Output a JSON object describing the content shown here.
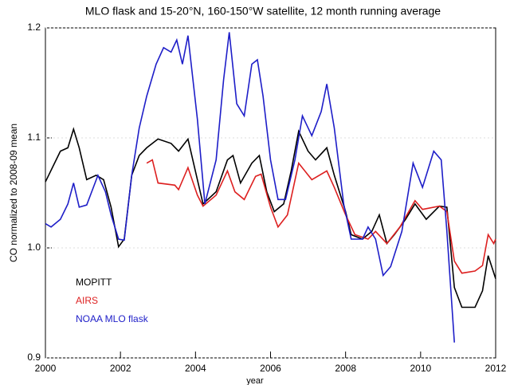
{
  "chart_data": {
    "type": "line",
    "title": "MLO flask and 15-20°N, 160-150°W satellite, 12 month running average",
    "x_label": "year",
    "y_label": "CO normalized to 2008-09 mean",
    "xlim": [
      2000,
      2012
    ],
    "xticks": [
      2000,
      2002,
      2004,
      2006,
      2008,
      2010,
      2012
    ],
    "ylim": [
      0.9,
      1.2
    ],
    "yticks": [
      0.9,
      {
        "value": 1,
        "label": "1.0"
      },
      1.1,
      1.2
    ],
    "grid": true,
    "legend": "lower left",
    "series": [
      {
        "name": "MOPITT",
        "color": "#000000",
        "x": [
          2000.0,
          2000.4,
          2000.6,
          2000.75,
          2000.9,
          2001.1,
          2001.35,
          2001.55,
          2001.75,
          2001.95,
          2002.1,
          2002.3,
          2002.5,
          2002.7,
          2003.0,
          2003.35,
          2003.55,
          2003.8,
          2004.05,
          2004.2,
          2004.55,
          2004.85,
          2005.0,
          2005.2,
          2005.5,
          2005.7,
          2005.9,
          2006.1,
          2006.35,
          2006.55,
          2006.75,
          2007.0,
          2007.2,
          2007.5,
          2007.7,
          2008.0,
          2008.15,
          2008.45,
          2008.7,
          2008.9,
          2009.1,
          2009.3,
          2009.6,
          2009.85,
          2010.15,
          2010.5,
          2010.7,
          2010.9,
          2011.1,
          2011.45,
          2011.65,
          2011.8,
          2012.0
        ],
        "values": [
          1.06,
          1.088,
          1.091,
          1.108,
          1.091,
          1.062,
          1.066,
          1.062,
          1.037,
          1.001,
          1.008,
          1.066,
          1.084,
          1.091,
          1.099,
          1.095,
          1.088,
          1.099,
          1.062,
          1.04,
          1.051,
          1.08,
          1.084,
          1.059,
          1.077,
          1.084,
          1.051,
          1.033,
          1.04,
          1.07,
          1.106,
          1.088,
          1.08,
          1.091,
          1.066,
          1.033,
          1.012,
          1.008,
          1.015,
          1.03,
          1.004,
          1.012,
          1.026,
          1.04,
          1.026,
          1.038,
          1.037,
          0.964,
          0.946,
          0.946,
          0.961,
          0.993,
          0.972
        ]
      },
      {
        "name": "AIRS",
        "color": "#dd2020",
        "x": [
          2002.7,
          2002.85,
          2003.0,
          2003.45,
          2003.55,
          2003.8,
          2004.05,
          2004.2,
          2004.55,
          2004.85,
          2005.05,
          2005.3,
          2005.6,
          2005.75,
          2006.0,
          2006.2,
          2006.45,
          2006.75,
          2007.1,
          2007.5,
          2007.7,
          2008.0,
          2008.25,
          2008.6,
          2008.8,
          2009.1,
          2009.45,
          2009.85,
          2010.05,
          2010.5,
          2010.7,
          2010.9,
          2011.1,
          2011.45,
          2011.65,
          2011.8,
          2011.95,
          2012.0
        ],
        "values": [
          1.077,
          1.08,
          1.059,
          1.057,
          1.053,
          1.073,
          1.048,
          1.038,
          1.048,
          1.07,
          1.051,
          1.044,
          1.065,
          1.067,
          1.037,
          1.019,
          1.03,
          1.077,
          1.062,
          1.07,
          1.055,
          1.03,
          1.012,
          1.008,
          1.015,
          1.004,
          1.019,
          1.043,
          1.035,
          1.038,
          1.033,
          0.988,
          0.977,
          0.979,
          0.984,
          1.012,
          1.004,
          1.008
        ]
      },
      {
        "name": "NOAA MLO flask",
        "color": "#1e1ec8",
        "x": [
          2000.0,
          2000.15,
          2000.4,
          2000.6,
          2000.75,
          2000.9,
          2001.1,
          2001.4,
          2001.6,
          2001.75,
          2001.95,
          2002.1,
          2002.3,
          2002.5,
          2002.7,
          2002.95,
          2003.15,
          2003.35,
          2003.5,
          2003.65,
          2003.8,
          2004.05,
          2004.25,
          2004.55,
          2004.75,
          2004.9,
          2005.1,
          2005.3,
          2005.5,
          2005.65,
          2005.8,
          2006.0,
          2006.2,
          2006.4,
          2006.65,
          2006.85,
          2007.1,
          2007.35,
          2007.5,
          2007.7,
          2007.95,
          2008.15,
          2008.45,
          2008.6,
          2008.8,
          2009.0,
          2009.2,
          2009.5,
          2009.8,
          2010.05,
          2010.35,
          2010.55,
          2010.7,
          2010.9
        ],
        "values": [
          1.022,
          1.019,
          1.026,
          1.04,
          1.059,
          1.037,
          1.039,
          1.066,
          1.051,
          1.03,
          1.008,
          1.007,
          1.066,
          1.109,
          1.138,
          1.167,
          1.182,
          1.178,
          1.189,
          1.167,
          1.193,
          1.117,
          1.04,
          1.08,
          1.153,
          1.196,
          1.131,
          1.12,
          1.167,
          1.171,
          1.138,
          1.08,
          1.044,
          1.044,
          1.08,
          1.12,
          1.102,
          1.124,
          1.149,
          1.109,
          1.04,
          1.008,
          1.008,
          1.019,
          1.008,
          0.975,
          0.983,
          1.015,
          1.077,
          1.055,
          1.088,
          1.08,
          1.015,
          0.914
        ]
      }
    ]
  }
}
